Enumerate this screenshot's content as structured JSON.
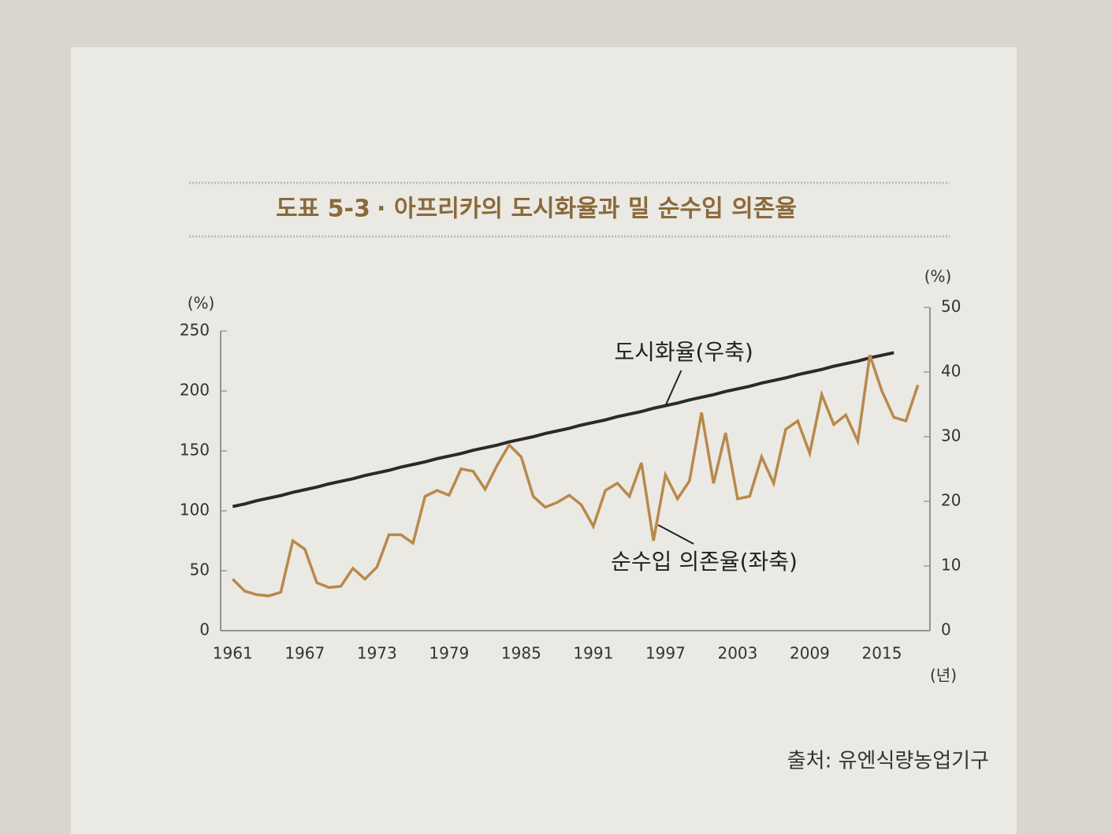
{
  "chart_data": {
    "type": "line",
    "title_label": "도표 5-3",
    "title": "아프리카의 도시화율과 밀 순수입 의존율",
    "y_label": "(%)",
    "y2_label": "(%)",
    "x_label": "(년)",
    "source": "출처: 유엔식량농업기구",
    "x": [
      1961,
      1962,
      1963,
      1964,
      1965,
      1966,
      1967,
      1968,
      1969,
      1970,
      1971,
      1972,
      1973,
      1974,
      1975,
      1976,
      1977,
      1978,
      1979,
      1980,
      1981,
      1982,
      1983,
      1984,
      1985,
      1986,
      1987,
      1988,
      1989,
      1990,
      1991,
      1992,
      1993,
      1994,
      1995,
      1996,
      1997,
      1998,
      1999,
      2000,
      2001,
      2002,
      2003,
      2004,
      2005,
      2006,
      2007,
      2008,
      2009,
      2010,
      2011,
      2012,
      2013,
      2014,
      2015,
      2016,
      2017,
      2018
    ],
    "xlim": [
      1960,
      2019
    ],
    "xticks": [
      1961,
      1967,
      1973,
      1979,
      1985,
      1991,
      1997,
      2003,
      2009,
      2015
    ],
    "ylim": [
      0,
      250
    ],
    "yticks": [
      0,
      50,
      100,
      150,
      200,
      250
    ],
    "y2lim": [
      0,
      50
    ],
    "y2ticks": [
      0,
      10,
      20,
      30,
      40,
      50
    ],
    "series": [
      {
        "name": "도시화율(우축)",
        "color": "#2a2a2a",
        "axis": "y2",
        "values": [
          19.2,
          19.6,
          20.1,
          20.5,
          20.9,
          21.4,
          21.8,
          22.2,
          22.7,
          23.1,
          23.5,
          24.0,
          24.4,
          24.8,
          25.3,
          25.7,
          26.1,
          26.6,
          27.0,
          27.4,
          27.9,
          28.3,
          28.7,
          29.2,
          29.6,
          30.0,
          30.5,
          30.9,
          31.3,
          31.8,
          32.2,
          32.6,
          33.1,
          33.5,
          33.9,
          34.4,
          34.8,
          35.2,
          35.7,
          36.1,
          36.5,
          37.0,
          37.4,
          37.8,
          38.3,
          38.7,
          39.1,
          39.6,
          40.0,
          40.4,
          40.9,
          41.3,
          41.7,
          42.2,
          42.6,
          43.0,
          null,
          null
        ]
      },
      {
        "name": "순수입 의존율(좌축)",
        "color": "#b8894a",
        "values": [
          43,
          33,
          30,
          29,
          32,
          75,
          68,
          40,
          36,
          37,
          52,
          43,
          53,
          80,
          80,
          73,
          112,
          117,
          113,
          135,
          133,
          118,
          138,
          155,
          145,
          112,
          103,
          107,
          113,
          105,
          87,
          117,
          123,
          112,
          140,
          75,
          130,
          110,
          125,
          182,
          123,
          165,
          110,
          112,
          145,
          123,
          168,
          175,
          148,
          197,
          172,
          180,
          158,
          230,
          200,
          178,
          175,
          205
        ]
      }
    ]
  }
}
